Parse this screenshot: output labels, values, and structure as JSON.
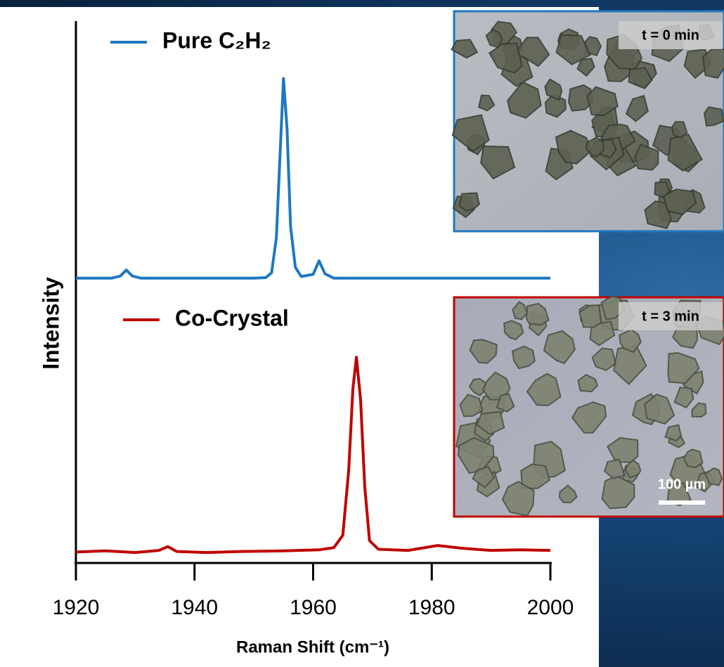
{
  "chart_data": {
    "type": "line",
    "xlabel": "Raman Shift (cm⁻¹)",
    "ylabel": "Intensity",
    "xlim": [
      1920,
      2000
    ],
    "xticks": [
      1920,
      1940,
      1960,
      1980,
      2000
    ],
    "ylim": [
      0,
      100
    ],
    "series": [
      {
        "name": "Pure C₂H₂",
        "color": "#1f78c1",
        "x": [
          1920,
          1926,
          1927.5,
          1928.5,
          1929.5,
          1931,
          1950,
          1952,
          1953,
          1953.8,
          1954.4,
          1955,
          1955.6,
          1956.2,
          1957,
          1958,
          1960,
          1961,
          1962,
          1963.5,
          2000
        ],
        "values": [
          52.5,
          52.5,
          52.9,
          54.0,
          52.9,
          52.5,
          52.5,
          52.6,
          53.5,
          60,
          75,
          89.4,
          80,
          62,
          54.5,
          52.8,
          53.2,
          55.7,
          53.3,
          52.5,
          52.5
        ]
      },
      {
        "name": "Co-Crystal",
        "color": "#c00000",
        "x": [
          1920,
          1925,
          1930,
          1934,
          1935.5,
          1937,
          1942,
          1948,
          1955,
          1961,
          1963.5,
          1965,
          1966,
          1966.7,
          1967.3,
          1968,
          1968.7,
          1969.5,
          1971,
          1976,
          1981,
          1985,
          1990,
          1995,
          2000
        ],
        "values": [
          1.9,
          2.1,
          1.8,
          2.2,
          2.9,
          2.0,
          1.8,
          2.0,
          2.1,
          2.3,
          2.7,
          5,
          17,
          32,
          37.9,
          30,
          14,
          4,
          2.4,
          2.2,
          3.1,
          2.6,
          2.2,
          2.3,
          2.2
        ]
      }
    ],
    "annotations": [
      "t = 0 min",
      "t = 3 min",
      "100 µm"
    ]
  }
}
